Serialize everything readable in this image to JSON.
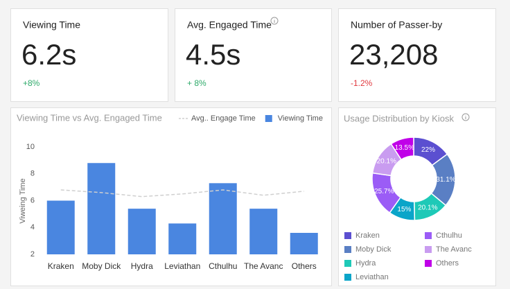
{
  "cards": [
    {
      "title": "Viewing Time",
      "value": "6.2s",
      "change": "+8%",
      "change_color": "#2eaa6a"
    },
    {
      "title": "Avg. Engaged Time",
      "value": "4.5s",
      "change": "+ 8%",
      "change_color": "#2eaa6a"
    },
    {
      "title": "Number of Passer-by",
      "value": "23,208",
      "change": "-1.2%",
      "change_color": "#e0383e"
    }
  ],
  "chart_data": [
    {
      "type": "bar",
      "title": "Viewing Time vs Avg. Engaged Time",
      "y_label": "Viweing Time",
      "categories": [
        "Kraken",
        "Moby Dick",
        "Hydra",
        "Leviathan",
        "Cthulhu",
        "The Avanc",
        "Others"
      ],
      "series": [
        {
          "name": "Avg.. Engage Time",
          "type": "line",
          "color": "#cfcfcf",
          "values": [
            6.8,
            6.6,
            6.3,
            6.5,
            6.8,
            6.4,
            6.7
          ]
        },
        {
          "name": "Viewing Time",
          "type": "bar",
          "color": "#4a86e0",
          "values": [
            6.0,
            8.8,
            5.4,
            4.3,
            7.3,
            5.4,
            3.6
          ]
        }
      ],
      "ylim": [
        2,
        10
      ],
      "yticks": [
        2,
        4,
        6,
        8,
        10
      ],
      "grid": false
    },
    {
      "type": "donut",
      "title": "Usage Distribution by Kiosk",
      "categories": [
        "Kraken",
        "Moby Dick",
        "Hydra",
        "Leviathan",
        "Cthulhu",
        "The Avanc",
        "Others"
      ],
      "values": [
        22,
        31.1,
        20.1,
        15,
        25.7,
        20.1,
        13.5
      ],
      "value_labels": [
        "22%",
        "31.1%",
        "20.1%",
        "15%",
        "25.7%",
        "20.1%",
        "13.5%"
      ],
      "colors": [
        "#5b4fd0",
        "#5a7fc4",
        "#1ec9b7",
        "#0aa5c9",
        "#9b5cf6",
        "#c99cf0",
        "#c000e8"
      ]
    }
  ]
}
